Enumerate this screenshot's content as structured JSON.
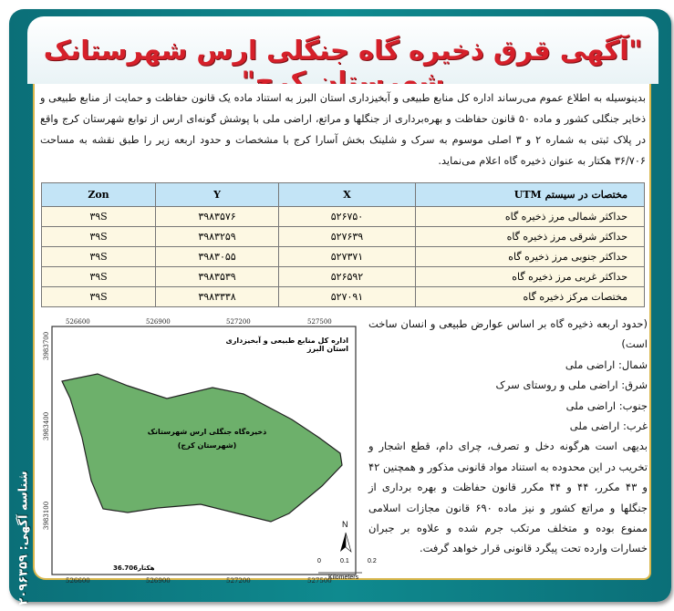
{
  "title": "\"آگهی قرق ذخیره گاه جنگلی ارس شهرستانک شهرستان کرج\"",
  "intro": "بدینوسیله به اطلاع عموم می‌رساند اداره کل منابع طبیعی و آبخیزداری استان البرز به استناد ماده یک قانون حفاظت و حمایت از منابع طبیعی و ذخایر جنگلی کشور و ماده ۵۰ قانون حفاظت و بهره‌برداری از جنگلها و مراتع، اراضی ملی با پوشش گونه‌ای ارس از توابع شهرستان کرج واقع در پلاک ثبتی به شماره ۲ و ۳ اصلی موسوم به سرک و شلینک بخش آسارا کرج با مشخصات و حدود اربعه زیر را طبق نقشه به مساحت ۳۶/۷۰۶ هکتار به عنوان ذخیره گاه اعلام می‌نماید.",
  "table": {
    "headers": [
      "مختصات در سیستم UTM",
      "X",
      "Y",
      "Zon"
    ],
    "rows": [
      [
        "حداکثر شمالی مرز ذخیره گاه",
        "۵۲۶۷۵۰",
        "۳۹۸۳۵۷۶",
        "۳۹S"
      ],
      [
        "حداکثر شرقی مرز ذخیره گاه",
        "۵۲۷۶۳۹",
        "۳۹۸۳۲۵۹",
        "۳۹S"
      ],
      [
        "حداکثر جنوبی مرز ذخیره گاه",
        "۵۲۷۳۷۱",
        "۳۹۸۳۰۵۵",
        "۳۹S"
      ],
      [
        "حداکثر غربی مرز ذخیره گاه",
        "۵۲۶۵۹۲",
        "۳۹۸۳۵۳۹",
        "۳۹S"
      ],
      [
        "مختصات مرکز ذخیره گاه",
        "۵۲۷۰۹۱",
        "۳۹۸۳۳۳۸",
        "۳۹S"
      ]
    ]
  },
  "map": {
    "header": "اداره کل منابع طبیعی و آبخیزداری استان البرز",
    "label_line1": "ذخیره‌گاه جنگلی ارس شهرستانک",
    "label_line2": "(شهرستان کرج)",
    "x_ticks": [
      "526600",
      "526900",
      "527200",
      "527500"
    ],
    "y_ticks": [
      "3983700",
      "3983400",
      "3983100"
    ],
    "area": "36.706هکتار",
    "north": "N",
    "scale_ticks": [
      "0",
      "0.1",
      "0.2"
    ],
    "scale_unit": "Kilometers",
    "fill_color": "#6db06b"
  },
  "boundaries": {
    "intro": "(حدود اربعه ذخیره گاه بر اساس عوارض طبیعی و انسان ساخت است)",
    "north": "شمال: اراضی ملی",
    "east": "شرق: اراضی ملی و روستای سرک",
    "south": "جنوب: اراضی ملی",
    "west": "غرب: اراضی ملی",
    "warning": "بدیهی است هرگونه دخل و تصرف، چرای دام، قطع اشجار و تخریب در این محدوده به استناد مواد قانونی مذکور و همچنین ۴۲ و ۴۳ مکرر، ۴۴ و ۴۴ مکرر قانون حفاظت و بهره برداری از جنگلها و مراتع کشور و نیز ماده ۶۹۰ قانون مجازات اسلامی ممنوع بوده و متخلف مرتکب جرم شده و علاوه بر جبران خسارات وارده تحت پیگرد قانونی قرار خواهد گرفت."
  },
  "ad_id": "شناسه آگهی: ۲۰۹۶۳۵۹"
}
